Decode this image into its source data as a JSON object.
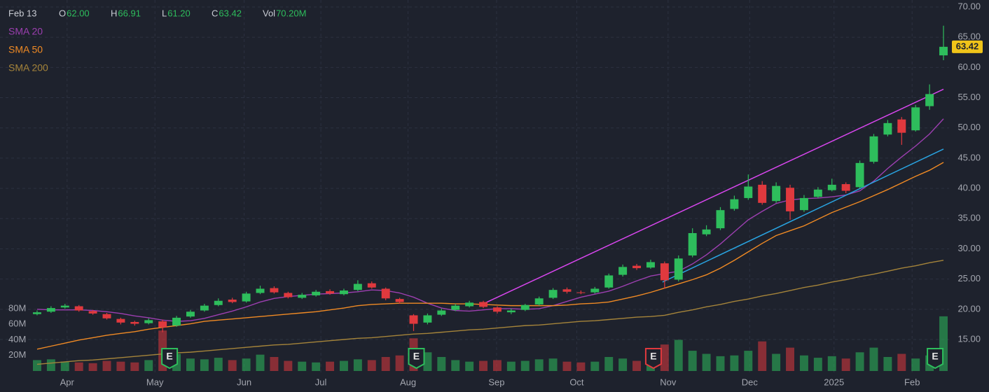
{
  "chart_data": {
    "type": "candlestick",
    "header": {
      "date": "Feb 13",
      "fields": [
        {
          "label": "O",
          "value": "62.00"
        },
        {
          "label": "H",
          "value": "66.91"
        },
        {
          "label": "L",
          "value": "61.20"
        },
        {
          "label": "C",
          "value": "63.42"
        },
        {
          "label": "Vol",
          "value": "70.20M"
        }
      ]
    },
    "up_color": "#2ebd5c",
    "down_color": "#e0393e",
    "x": [
      0,
      1,
      2,
      3,
      4,
      5,
      6,
      7,
      8,
      9,
      10,
      11,
      12,
      13,
      14,
      15,
      16,
      17,
      18,
      19,
      20,
      21,
      22,
      23,
      24,
      25,
      26,
      27,
      28,
      29,
      30,
      31,
      32,
      33,
      34,
      35,
      36,
      37,
      38,
      39,
      40,
      41,
      42,
      43,
      44,
      45,
      46,
      47,
      48,
      49,
      50,
      51,
      52,
      53,
      54,
      55,
      56,
      57,
      58,
      59,
      60,
      61,
      62,
      63,
      64,
      65
    ],
    "open": [
      19.2,
      19.6,
      20.3,
      20.5,
      19.7,
      19.2,
      18.4,
      17.9,
      17.7,
      18.0,
      17.3,
      18.8,
      19.8,
      20.7,
      21.6,
      21.3,
      22.7,
      23.5,
      22.7,
      21.9,
      22.3,
      23.0,
      22.5,
      23.2,
      24.3,
      23.4,
      21.7,
      19.0,
      17.8,
      19.1,
      19.9,
      20.5,
      21.2,
      20.3,
      19.5,
      19.9,
      20.8,
      21.9,
      23.3,
      22.8,
      22.8,
      23.6,
      25.7,
      27.2,
      26.9,
      27.6,
      24.9,
      28.9,
      32.4,
      33.4,
      36.6,
      38.4,
      40.6,
      37.9,
      40.1,
      36.4,
      38.6,
      39.7,
      40.7,
      40.2,
      44.4,
      48.9,
      51.4,
      49.6,
      53.6,
      62.0
    ],
    "high": [
      19.8,
      20.5,
      20.9,
      20.7,
      19.9,
      19.4,
      18.6,
      18.1,
      18.5,
      18.3,
      18.9,
      19.9,
      20.9,
      21.8,
      21.9,
      22.9,
      23.9,
      23.8,
      22.9,
      22.7,
      23.2,
      23.3,
      23.4,
      24.8,
      24.6,
      23.6,
      21.9,
      19.2,
      19.3,
      20.1,
      20.9,
      21.4,
      21.4,
      20.5,
      20.1,
      20.9,
      22.1,
      23.5,
      23.6,
      23.1,
      23.7,
      25.9,
      27.4,
      27.5,
      28.2,
      27.9,
      28.9,
      33.4,
      33.9,
      36.9,
      38.8,
      42.3,
      41.2,
      41.0,
      40.6,
      38.9,
      40.2,
      41.6,
      41.0,
      44.6,
      49.0,
      51.3,
      51.8,
      53.8,
      57.2,
      66.91
    ],
    "low": [
      19.0,
      19.4,
      20.1,
      19.6,
      19.1,
      18.3,
      17.5,
      17.3,
      17.5,
      16.2,
      17.1,
      18.6,
      19.6,
      20.5,
      21.0,
      21.1,
      22.5,
      22.6,
      21.8,
      21.7,
      22.1,
      22.4,
      22.3,
      23.0,
      23.4,
      21.5,
      20.9,
      16.4,
      17.5,
      18.9,
      19.7,
      20.3,
      20.2,
      19.3,
      19.2,
      19.7,
      20.6,
      21.7,
      22.6,
      22.5,
      22.6,
      23.4,
      25.4,
      26.5,
      26.7,
      23.4,
      24.6,
      28.6,
      32.1,
      33.1,
      36.3,
      38.1,
      37.3,
      37.6,
      34.8,
      36.1,
      38.4,
      39.5,
      39.2,
      40.0,
      44.1,
      48.6,
      47.2,
      49.4,
      53.0,
      61.2
    ],
    "close": [
      19.5,
      20.2,
      20.6,
      19.8,
      19.3,
      18.5,
      17.8,
      17.6,
      18.2,
      17.0,
      18.6,
      19.6,
      20.6,
      21.4,
      21.2,
      22.6,
      23.4,
      22.8,
      22.0,
      22.4,
      22.9,
      22.6,
      23.1,
      24.2,
      23.6,
      21.8,
      21.2,
      17.6,
      19.0,
      19.8,
      20.6,
      21.1,
      20.4,
      19.6,
      19.8,
      20.7,
      21.8,
      23.2,
      22.9,
      22.7,
      23.4,
      25.6,
      27.0,
      26.8,
      27.8,
      24.8,
      28.4,
      32.6,
      33.2,
      36.4,
      38.2,
      40.3,
      37.6,
      40.4,
      36.2,
      38.4,
      39.8,
      40.6,
      39.6,
      44.2,
      48.6,
      50.8,
      49.2,
      53.4,
      55.6,
      63.42
    ],
    "volume": [
      14,
      15,
      12,
      11,
      10,
      13,
      12,
      11,
      14,
      52,
      22,
      16,
      15,
      17,
      14,
      16,
      21,
      18,
      13,
      12,
      11,
      12,
      13,
      15,
      14,
      18,
      20,
      42,
      24,
      18,
      14,
      12,
      13,
      14,
      12,
      13,
      15,
      16,
      12,
      11,
      12,
      18,
      16,
      13,
      14,
      34,
      40,
      26,
      22,
      19,
      20,
      26,
      38,
      22,
      30,
      20,
      17,
      19,
      16,
      24,
      30,
      18,
      22,
      16,
      20,
      70.2
    ],
    "series": [
      {
        "name": "SMA 20",
        "color": "#9c3fb0",
        "values": [
          20.0,
          19.9,
          19.9,
          19.9,
          19.8,
          19.6,
          19.3,
          18.9,
          18.6,
          18.2,
          18.0,
          18.1,
          18.5,
          19.1,
          19.7,
          20.4,
          21.2,
          21.8,
          22.1,
          22.3,
          22.5,
          22.6,
          22.7,
          22.9,
          23.2,
          23.1,
          22.7,
          22.0,
          21.0,
          20.2,
          19.8,
          19.7,
          19.9,
          20.1,
          20.1,
          20.0,
          20.1,
          20.6,
          21.3,
          22.0,
          22.5,
          23.0,
          23.8,
          24.7,
          25.5,
          25.9,
          26.3,
          27.5,
          29.0,
          30.8,
          32.8,
          34.8,
          36.2,
          37.5,
          38.1,
          38.3,
          38.4,
          38.6,
          38.9,
          39.6,
          41.2,
          43.3,
          45.2,
          47.0,
          49.0,
          51.5
        ]
      },
      {
        "name": "SMA 50",
        "color": "#f08a24",
        "values": [
          13.4,
          13.9,
          14.4,
          14.9,
          15.3,
          15.7,
          16.0,
          16.3,
          16.7,
          17.0,
          17.3,
          17.6,
          18.0,
          18.2,
          18.4,
          18.6,
          18.8,
          19.0,
          19.2,
          19.4,
          19.6,
          19.9,
          20.2,
          20.6,
          20.8,
          20.9,
          21.0,
          21.0,
          21.0,
          21.0,
          20.9,
          20.9,
          20.8,
          20.7,
          20.6,
          20.6,
          20.6,
          20.6,
          20.7,
          20.9,
          21.0,
          21.2,
          21.7,
          22.2,
          22.8,
          23.5,
          24.2,
          24.9,
          25.7,
          26.8,
          28.1,
          29.5,
          30.9,
          32.2,
          33.0,
          33.8,
          34.9,
          36.0,
          36.9,
          37.8,
          38.8,
          39.8,
          40.9,
          42.0,
          43.0,
          44.3
        ]
      },
      {
        "name": "SMA 200",
        "color": "#a5843a",
        "values": [
          10.9,
          11.1,
          11.3,
          11.5,
          11.6,
          11.8,
          12.0,
          12.2,
          12.4,
          12.6,
          12.8,
          12.9,
          13.1,
          13.3,
          13.5,
          13.7,
          13.9,
          14.1,
          14.2,
          14.4,
          14.6,
          14.8,
          15.0,
          15.2,
          15.3,
          15.5,
          15.7,
          15.9,
          16.0,
          16.2,
          16.4,
          16.6,
          16.7,
          16.9,
          17.1,
          17.3,
          17.4,
          17.6,
          17.8,
          18.0,
          18.1,
          18.3,
          18.5,
          18.7,
          18.8,
          19.0,
          19.5,
          19.9,
          20.4,
          20.8,
          21.3,
          21.7,
          22.2,
          22.6,
          23.1,
          23.6,
          24.0,
          24.5,
          24.9,
          25.4,
          25.8,
          26.3,
          26.8,
          27.2,
          27.7,
          28.1
        ]
      }
    ],
    "trendlines": [
      {
        "color": "#d946ef",
        "x": [
          31.9,
          65
        ],
        "y": [
          20.8,
          56.4
        ]
      },
      {
        "color": "#29a3e0",
        "x": [
          44.85,
          65
        ],
        "y": [
          24.5,
          46.5
        ]
      }
    ],
    "earnings": [
      {
        "x": 9.5,
        "label": "E",
        "color": "#2ebd5c"
      },
      {
        "x": 27.2,
        "label": "E",
        "color": "#2ebd5c"
      },
      {
        "x": 44.2,
        "label": "E",
        "color": "#e0393e"
      },
      {
        "x": 64.4,
        "label": "E",
        "color": "#2ebd5c"
      }
    ],
    "xlim": [
      -0.4,
      65.4
    ],
    "xticks": [
      {
        "value": 2.15,
        "label": "Apr"
      },
      {
        "value": 8.45,
        "label": "May"
      },
      {
        "value": 14.85,
        "label": "Jun"
      },
      {
        "value": 20.35,
        "label": "Jul"
      },
      {
        "value": 26.6,
        "label": "Aug"
      },
      {
        "value": 32.95,
        "label": "Sep"
      },
      {
        "value": 38.7,
        "label": "Oct"
      },
      {
        "value": 45.25,
        "label": "Nov"
      },
      {
        "value": 51.1,
        "label": "Dec"
      },
      {
        "value": 57.15,
        "label": "2025"
      },
      {
        "value": 62.75,
        "label": "Feb"
      }
    ],
    "ylim": [
      9.21,
      71.16
    ],
    "yticks": [
      {
        "value": 15,
        "label": "15.00"
      },
      {
        "value": 20,
        "label": "20.00"
      },
      {
        "value": 25,
        "label": "25.00"
      },
      {
        "value": 30,
        "label": "30.00"
      },
      {
        "value": 35,
        "label": "35.00"
      },
      {
        "value": 40,
        "label": "40.00"
      },
      {
        "value": 45,
        "label": "45.00"
      },
      {
        "value": 50,
        "label": "50.00"
      },
      {
        "value": 55,
        "label": "55.00"
      },
      {
        "value": 60,
        "label": "60.00"
      },
      {
        "value": 65,
        "label": "65.00"
      },
      {
        "value": 70,
        "label": "70.00"
      }
    ],
    "volume_lim": [
      0,
      80
    ],
    "volume_ticks": [
      {
        "value": 20,
        "label": "20M"
      },
      {
        "value": 40,
        "label": "40M"
      },
      {
        "value": 60,
        "label": "60M"
      },
      {
        "value": 80,
        "label": "80M"
      }
    ],
    "grid": true,
    "price_tag_color": "#f0c419"
  }
}
